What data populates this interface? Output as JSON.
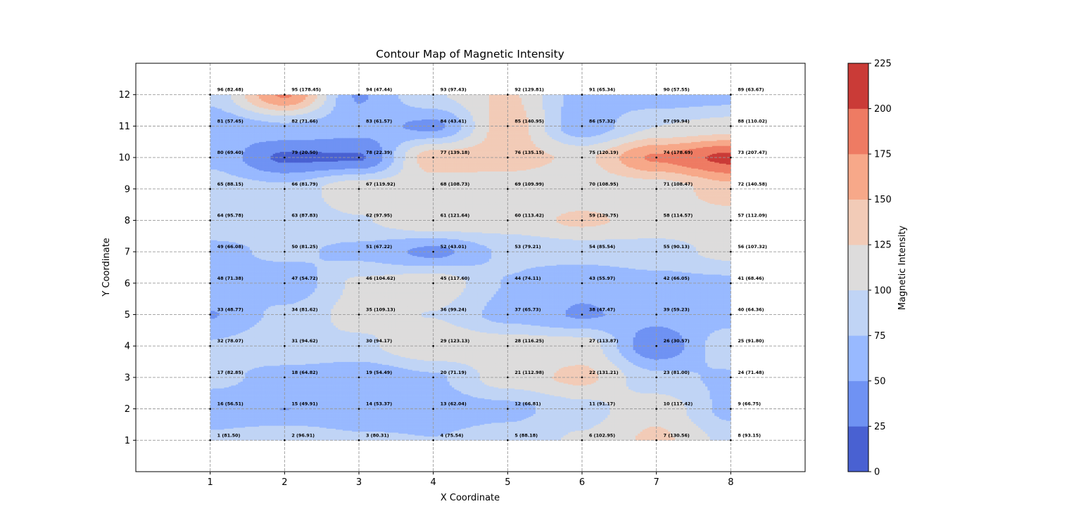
{
  "chart_data": {
    "type": "heatmap",
    "subtype": "filled-contour",
    "title": "Contour Map of Magnetic Intensity",
    "xlabel": "X Coordinate",
    "ylabel": "Y Coordinate",
    "xlim": [
      0,
      9
    ],
    "ylim": [
      0,
      13
    ],
    "x_ticks": [
      1,
      2,
      3,
      4,
      5,
      6,
      7,
      8
    ],
    "y_ticks": [
      1,
      2,
      3,
      4,
      5,
      6,
      7,
      8,
      9,
      10,
      11,
      12
    ],
    "grid": true,
    "grid_style": "dashed",
    "colorbar": {
      "label": "Magnetic Intensity",
      "levels": [
        0,
        25,
        50,
        75,
        100,
        125,
        150,
        175,
        200,
        225
      ],
      "colors": [
        "#4961d2",
        "#6f92f3",
        "#98b9ff",
        "#c0d4f5",
        "#dddcdc",
        "#f2cbb7",
        "#f7a889",
        "#ee7b63",
        "#ca3b37"
      ],
      "colormap": "coolwarm"
    },
    "points": [
      {
        "id": 1,
        "x": 1,
        "y": 1,
        "value": 81.5
      },
      {
        "id": 2,
        "x": 2,
        "y": 1,
        "value": 96.91
      },
      {
        "id": 3,
        "x": 3,
        "y": 1,
        "value": 80.31
      },
      {
        "id": 4,
        "x": 4,
        "y": 1,
        "value": 75.54
      },
      {
        "id": 5,
        "x": 5,
        "y": 1,
        "value": 88.18
      },
      {
        "id": 6,
        "x": 6,
        "y": 1,
        "value": 102.95
      },
      {
        "id": 7,
        "x": 7,
        "y": 1,
        "value": 130.56
      },
      {
        "id": 8,
        "x": 8,
        "y": 1,
        "value": 93.15
      },
      {
        "id": 9,
        "x": 8,
        "y": 2,
        "value": 66.75
      },
      {
        "id": 10,
        "x": 7,
        "y": 2,
        "value": 117.42
      },
      {
        "id": 11,
        "x": 6,
        "y": 2,
        "value": 91.17
      },
      {
        "id": 12,
        "x": 5,
        "y": 2,
        "value": 66.81
      },
      {
        "id": 13,
        "x": 4,
        "y": 2,
        "value": 62.04
      },
      {
        "id": 14,
        "x": 3,
        "y": 2,
        "value": 53.37
      },
      {
        "id": 15,
        "x": 2,
        "y": 2,
        "value": 49.91
      },
      {
        "id": 16,
        "x": 1,
        "y": 2,
        "value": 56.51
      },
      {
        "id": 17,
        "x": 1,
        "y": 3,
        "value": 82.85
      },
      {
        "id": 18,
        "x": 2,
        "y": 3,
        "value": 64.82
      },
      {
        "id": 19,
        "x": 3,
        "y": 3,
        "value": 54.49
      },
      {
        "id": 20,
        "x": 4,
        "y": 3,
        "value": 71.19
      },
      {
        "id": 21,
        "x": 5,
        "y": 3,
        "value": 112.98
      },
      {
        "id": 22,
        "x": 6,
        "y": 3,
        "value": 131.21
      },
      {
        "id": 23,
        "x": 7,
        "y": 3,
        "value": 81.0
      },
      {
        "id": 24,
        "x": 8,
        "y": 3,
        "value": 71.48
      },
      {
        "id": 25,
        "x": 8,
        "y": 4,
        "value": 91.8
      },
      {
        "id": 26,
        "x": 7,
        "y": 4,
        "value": 30.57
      },
      {
        "id": 27,
        "x": 6,
        "y": 4,
        "value": 113.87
      },
      {
        "id": 28,
        "x": 5,
        "y": 4,
        "value": 116.25
      },
      {
        "id": 29,
        "x": 4,
        "y": 4,
        "value": 123.13
      },
      {
        "id": 30,
        "x": 3,
        "y": 4,
        "value": 94.17
      },
      {
        "id": 31,
        "x": 2,
        "y": 4,
        "value": 94.62
      },
      {
        "id": 32,
        "x": 1,
        "y": 4,
        "value": 78.07
      },
      {
        "id": 33,
        "x": 1,
        "y": 5,
        "value": 48.77
      },
      {
        "id": 34,
        "x": 2,
        "y": 5,
        "value": 81.62
      },
      {
        "id": 35,
        "x": 3,
        "y": 5,
        "value": 109.13
      },
      {
        "id": 36,
        "x": 4,
        "y": 5,
        "value": 99.24
      },
      {
        "id": 37,
        "x": 5,
        "y": 5,
        "value": 65.73
      },
      {
        "id": 38,
        "x": 6,
        "y": 5,
        "value": 47.47
      },
      {
        "id": 39,
        "x": 7,
        "y": 5,
        "value": 59.23
      },
      {
        "id": 40,
        "x": 8,
        "y": 5,
        "value": 64.36
      },
      {
        "id": 41,
        "x": 8,
        "y": 6,
        "value": 68.46
      },
      {
        "id": 42,
        "x": 7,
        "y": 6,
        "value": 66.05
      },
      {
        "id": 43,
        "x": 6,
        "y": 6,
        "value": 55.97
      },
      {
        "id": 44,
        "x": 5,
        "y": 6,
        "value": 74.11
      },
      {
        "id": 45,
        "x": 4,
        "y": 6,
        "value": 117.6
      },
      {
        "id": 46,
        "x": 3,
        "y": 6,
        "value": 104.62
      },
      {
        "id": 47,
        "x": 2,
        "y": 6,
        "value": 54.72
      },
      {
        "id": 48,
        "x": 1,
        "y": 6,
        "value": 71.38
      },
      {
        "id": 49,
        "x": 1,
        "y": 7,
        "value": 66.08
      },
      {
        "id": 50,
        "x": 2,
        "y": 7,
        "value": 81.25
      },
      {
        "id": 51,
        "x": 3,
        "y": 7,
        "value": 67.22
      },
      {
        "id": 52,
        "x": 4,
        "y": 7,
        "value": 43.01
      },
      {
        "id": 53,
        "x": 5,
        "y": 7,
        "value": 79.21
      },
      {
        "id": 54,
        "x": 6,
        "y": 7,
        "value": 85.54
      },
      {
        "id": 55,
        "x": 7,
        "y": 7,
        "value": 90.13
      },
      {
        "id": 56,
        "x": 8,
        "y": 7,
        "value": 107.32
      },
      {
        "id": 57,
        "x": 8,
        "y": 8,
        "value": 112.09
      },
      {
        "id": 58,
        "x": 7,
        "y": 8,
        "value": 114.57
      },
      {
        "id": 59,
        "x": 6,
        "y": 8,
        "value": 129.75
      },
      {
        "id": 60,
        "x": 5,
        "y": 8,
        "value": 113.42
      },
      {
        "id": 61,
        "x": 4,
        "y": 8,
        "value": 121.64
      },
      {
        "id": 62,
        "x": 3,
        "y": 8,
        "value": 97.95
      },
      {
        "id": 63,
        "x": 2,
        "y": 8,
        "value": 87.83
      },
      {
        "id": 64,
        "x": 1,
        "y": 8,
        "value": 95.78
      },
      {
        "id": 65,
        "x": 1,
        "y": 9,
        "value": 88.15
      },
      {
        "id": 66,
        "x": 2,
        "y": 9,
        "value": 81.79
      },
      {
        "id": 67,
        "x": 3,
        "y": 9,
        "value": 119.92
      },
      {
        "id": 68,
        "x": 4,
        "y": 9,
        "value": 108.73
      },
      {
        "id": 69,
        "x": 5,
        "y": 9,
        "value": 109.99
      },
      {
        "id": 70,
        "x": 6,
        "y": 9,
        "value": 108.95
      },
      {
        "id": 71,
        "x": 7,
        "y": 9,
        "value": 108.47
      },
      {
        "id": 72,
        "x": 8,
        "y": 9,
        "value": 140.58
      },
      {
        "id": 73,
        "x": 8,
        "y": 10,
        "value": 207.47
      },
      {
        "id": 74,
        "x": 7,
        "y": 10,
        "value": 178.69
      },
      {
        "id": 75,
        "x": 6,
        "y": 10,
        "value": 120.19
      },
      {
        "id": 76,
        "x": 5,
        "y": 10,
        "value": 135.15
      },
      {
        "id": 77,
        "x": 4,
        "y": 10,
        "value": 139.18
      },
      {
        "id": 78,
        "x": 3,
        "y": 10,
        "value": 22.39
      },
      {
        "id": 79,
        "x": 2,
        "y": 10,
        "value": 20.5
      },
      {
        "id": 80,
        "x": 1,
        "y": 10,
        "value": 69.4
      },
      {
        "id": 81,
        "x": 1,
        "y": 11,
        "value": 57.45
      },
      {
        "id": 82,
        "x": 2,
        "y": 11,
        "value": 71.66
      },
      {
        "id": 83,
        "x": 3,
        "y": 11,
        "value": 61.57
      },
      {
        "id": 84,
        "x": 4,
        "y": 11,
        "value": 43.41
      },
      {
        "id": 85,
        "x": 5,
        "y": 11,
        "value": 140.95
      },
      {
        "id": 86,
        "x": 6,
        "y": 11,
        "value": 57.32
      },
      {
        "id": 87,
        "x": 7,
        "y": 11,
        "value": 99.94
      },
      {
        "id": 88,
        "x": 8,
        "y": 11,
        "value": 110.02
      },
      {
        "id": 89,
        "x": 8,
        "y": 12,
        "value": 63.67
      },
      {
        "id": 90,
        "x": 7,
        "y": 12,
        "value": 57.55
      },
      {
        "id": 91,
        "x": 6,
        "y": 12,
        "value": 65.34
      },
      {
        "id": 92,
        "x": 5,
        "y": 12,
        "value": 129.81
      },
      {
        "id": 93,
        "x": 4,
        "y": 12,
        "value": 97.43
      },
      {
        "id": 94,
        "x": 3,
        "y": 12,
        "value": 47.44
      },
      {
        "id": 95,
        "x": 2,
        "y": 12,
        "value": 178.45
      },
      {
        "id": 96,
        "x": 1,
        "y": 12,
        "value": 82.48
      }
    ]
  }
}
